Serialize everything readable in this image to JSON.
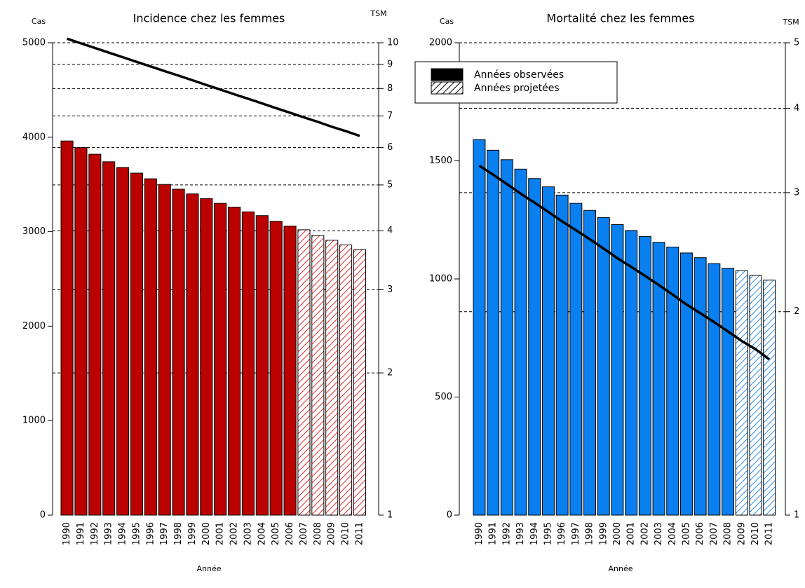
{
  "chart_data": [
    {
      "type": "bar",
      "title": "Incidence chez les femmes",
      "y_label": "Cas",
      "y2_label": "TSM",
      "x_label": "Année",
      "categories": [
        "1990",
        "1991",
        "1992",
        "1993",
        "1994",
        "1995",
        "1996",
        "1997",
        "1998",
        "1999",
        "2000",
        "2001",
        "2002",
        "2003",
        "2004",
        "2005",
        "2006",
        "2007",
        "2008",
        "2009",
        "2010",
        "2011"
      ],
      "ylim": [
        0,
        5000
      ],
      "yticks": [
        0,
        1000,
        2000,
        3000,
        4000,
        5000
      ],
      "y2lim": [
        1,
        10
      ],
      "y2ticks": [
        1,
        2,
        3,
        4,
        5,
        6,
        7,
        8,
        9,
        10
      ],
      "y2scale": "log",
      "grid": "y2",
      "series": [
        {
          "color": "#bb0000",
          "style": "solid",
          "values": [
            3960,
            3890,
            3820,
            3740,
            3680,
            3620,
            3560,
            3500,
            3450,
            3400,
            3350,
            3300,
            3260,
            3210,
            3170,
            3110,
            3060,
            null,
            null,
            null,
            null,
            null
          ]
        },
        {
          "color": "#e83030",
          "style": "hatched",
          "values": [
            null,
            null,
            null,
            null,
            null,
            null,
            null,
            null,
            null,
            null,
            null,
            null,
            null,
            null,
            null,
            null,
            null,
            3020,
            2960,
            2910,
            2860,
            2810
          ]
        },
        {
          "type": "line",
          "axis": "y2",
          "color": "#000000",
          "values": [
            10.2,
            9.97,
            9.75,
            9.53,
            9.32,
            9.11,
            8.91,
            8.71,
            8.52,
            8.33,
            8.14,
            7.96,
            7.78,
            7.61,
            7.44,
            7.27,
            7.11,
            6.95,
            6.8,
            6.64,
            6.5,
            6.35
          ]
        }
      ]
    },
    {
      "type": "bar",
      "title": "Mortalité chez les femmes",
      "y_label": "Cas",
      "y2_label": "TSM",
      "x_label": "Année",
      "categories": [
        "1990",
        "1991",
        "1992",
        "1993",
        "1994",
        "1995",
        "1996",
        "1997",
        "1998",
        "1999",
        "2000",
        "2001",
        "2002",
        "2003",
        "2004",
        "2005",
        "2006",
        "2007",
        "2008",
        "2009",
        "2010",
        "2011"
      ],
      "ylim": [
        0,
        2000
      ],
      "yticks": [
        0,
        500,
        1000,
        1500,
        2000
      ],
      "y2lim": [
        1,
        5
      ],
      "y2ticks": [
        1,
        2,
        3,
        4,
        5
      ],
      "y2scale": "log",
      "grid": "y2",
      "legend": "upper left",
      "series": [
        {
          "name": "Années observées",
          "color": "#0a7ff0",
          "style": "solid",
          "values": [
            1590,
            1545,
            1505,
            1465,
            1425,
            1390,
            1355,
            1320,
            1290,
            1260,
            1230,
            1205,
            1180,
            1155,
            1135,
            1110,
            1090,
            1065,
            1045,
            null,
            null,
            null
          ]
        },
        {
          "name": "Années projetées",
          "color": "#3090f0",
          "style": "hatched",
          "values": [
            null,
            null,
            null,
            null,
            null,
            null,
            null,
            null,
            null,
            null,
            null,
            null,
            null,
            null,
            null,
            null,
            null,
            null,
            null,
            1035,
            1015,
            995
          ]
        },
        {
          "type": "line",
          "axis": "y2",
          "color": "#000000",
          "values": [
            3.29,
            3.19,
            3.09,
            2.99,
            2.9,
            2.81,
            2.72,
            2.64,
            2.56,
            2.48,
            2.4,
            2.33,
            2.26,
            2.19,
            2.12,
            2.05,
            1.99,
            1.93,
            1.87,
            1.81,
            1.76,
            1.7
          ]
        }
      ]
    }
  ]
}
